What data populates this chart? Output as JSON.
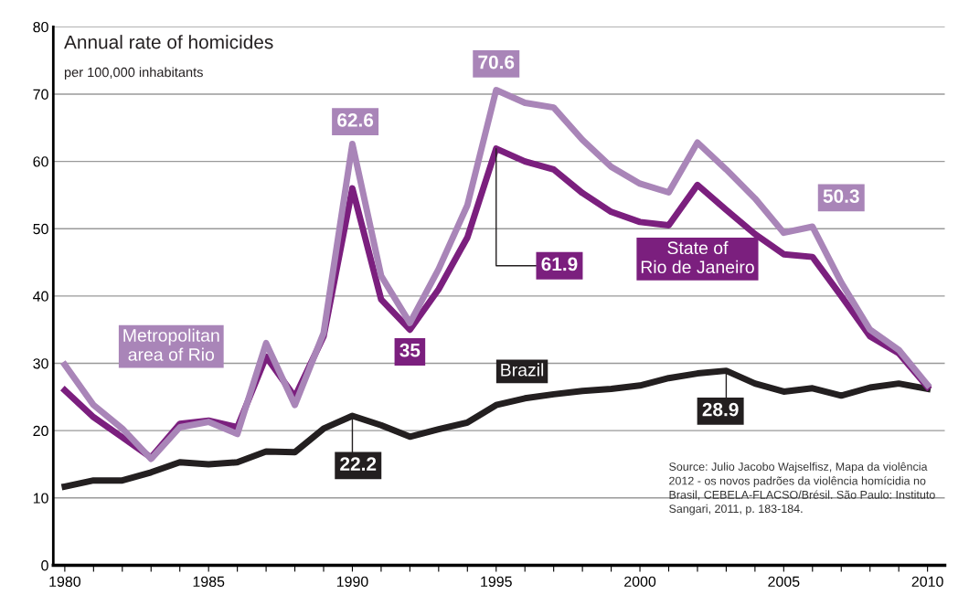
{
  "chart_data": {
    "type": "line",
    "title": "Annual rate of homicides",
    "subtitle": "per 100,000 inhabitants",
    "x": [
      1980,
      1981,
      1982,
      1983,
      1984,
      1985,
      1986,
      1987,
      1988,
      1989,
      1990,
      1991,
      1992,
      1993,
      1994,
      1995,
      1996,
      1997,
      1998,
      1999,
      2000,
      2001,
      2002,
      2003,
      2004,
      2005,
      2006,
      2007,
      2008,
      2009,
      2010
    ],
    "series": [
      {
        "name": "Metropolitan\narea of Rio",
        "color": "#a985b8",
        "values": [
          29.8,
          23.8,
          20.3,
          15.8,
          20.5,
          21.3,
          19.5,
          33,
          23.8,
          34.5,
          62.6,
          43,
          36,
          44,
          53.5,
          70.6,
          68.7,
          68,
          63.2,
          59.2,
          56.7,
          55.4,
          62.8,
          58.8,
          54.5,
          49.4,
          50.3,
          42,
          35,
          32,
          26.8
        ],
        "value_labels": [
          null,
          null,
          null,
          null,
          null,
          null,
          null,
          null,
          null,
          null,
          "62.6",
          null,
          null,
          null,
          null,
          "70.6",
          null,
          null,
          null,
          null,
          null,
          null,
          null,
          null,
          null,
          null,
          "50.3",
          null,
          null,
          null,
          null
        ]
      },
      {
        "name": "State of\nRio de Janeiro",
        "color": "#7b1f7e",
        "values": [
          26,
          22,
          19,
          16,
          21,
          21.5,
          20.5,
          31,
          25,
          34,
          56,
          39.5,
          35,
          41,
          48.7,
          61.9,
          60,
          58.8,
          55.3,
          52.5,
          51,
          50.5,
          56.5,
          52.8,
          49.2,
          46.2,
          45.8,
          40,
          34,
          31.5,
          26.5
        ],
        "value_labels": [
          null,
          null,
          null,
          null,
          null,
          null,
          null,
          null,
          null,
          null,
          null,
          null,
          "35",
          null,
          null,
          "61.9",
          null,
          null,
          null,
          null,
          null,
          null,
          null,
          null,
          null,
          null,
          null,
          null,
          null,
          null,
          null
        ]
      },
      {
        "name": "Brazil",
        "color": "#231f20",
        "values": [
          11.7,
          12.6,
          12.6,
          13.8,
          15.3,
          15,
          15.3,
          16.9,
          16.8,
          20.3,
          22.2,
          20.8,
          19.1,
          20.2,
          21.2,
          23.8,
          24.8,
          25.4,
          25.9,
          26.2,
          26.7,
          27.8,
          28.5,
          28.9,
          27,
          25.8,
          26.3,
          25.2,
          26.4,
          27,
          26.2
        ],
        "value_labels": [
          null,
          null,
          null,
          null,
          null,
          null,
          null,
          null,
          null,
          null,
          "22.2",
          null,
          null,
          null,
          null,
          null,
          null,
          null,
          null,
          null,
          null,
          null,
          null,
          "28.9",
          null,
          null,
          null,
          null,
          null,
          null,
          null
        ]
      }
    ],
    "xlim": [
      1979.6,
      2010.6
    ],
    "ylim": [
      0,
      80
    ],
    "yticks": [
      0,
      10,
      20,
      30,
      40,
      50,
      60,
      70,
      80
    ],
    "xticks": [
      1980,
      {
        "value": 1981,
        "label": null
      },
      {
        "value": 1982,
        "label": null
      },
      {
        "value": 1983,
        "label": null
      },
      {
        "value": 1984,
        "label": null
      },
      1985,
      {
        "value": 1986,
        "label": null
      },
      {
        "value": 1987,
        "label": null
      },
      {
        "value": 1988,
        "label": null
      },
      {
        "value": 1989,
        "label": null
      },
      1990,
      {
        "value": 1991,
        "label": null
      },
      {
        "value": 1992,
        "label": null
      },
      {
        "value": 1993,
        "label": null
      },
      {
        "value": 1994,
        "label": null
      },
      1995,
      {
        "value": 1996,
        "label": null
      },
      {
        "value": 1997,
        "label": null
      },
      {
        "value": 1998,
        "label": null
      },
      {
        "value": 1999,
        "label": null
      },
      2000,
      {
        "value": 2001,
        "label": null
      },
      {
        "value": 2002,
        "label": null
      },
      {
        "value": 2003,
        "label": null
      },
      {
        "value": 2004,
        "label": null
      },
      2005,
      {
        "value": 2006,
        "label": null
      },
      {
        "value": 2007,
        "label": null
      },
      {
        "value": 2008,
        "label": null
      },
      {
        "value": 2009,
        "label": null
      },
      2010
    ],
    "grid": "y",
    "legend": false,
    "line_style": "solid",
    "marker": "none",
    "annotations": [
      "Source: Julio Jacobo Wajselfisz, Mapa da violência\n2012 - os novos padrões da violência homícidia no\nBrasil, CEBELA-FLACSO/Brésil. São Paulo: Instituto\nSangari, 2011, p. 183-184."
    ]
  }
}
